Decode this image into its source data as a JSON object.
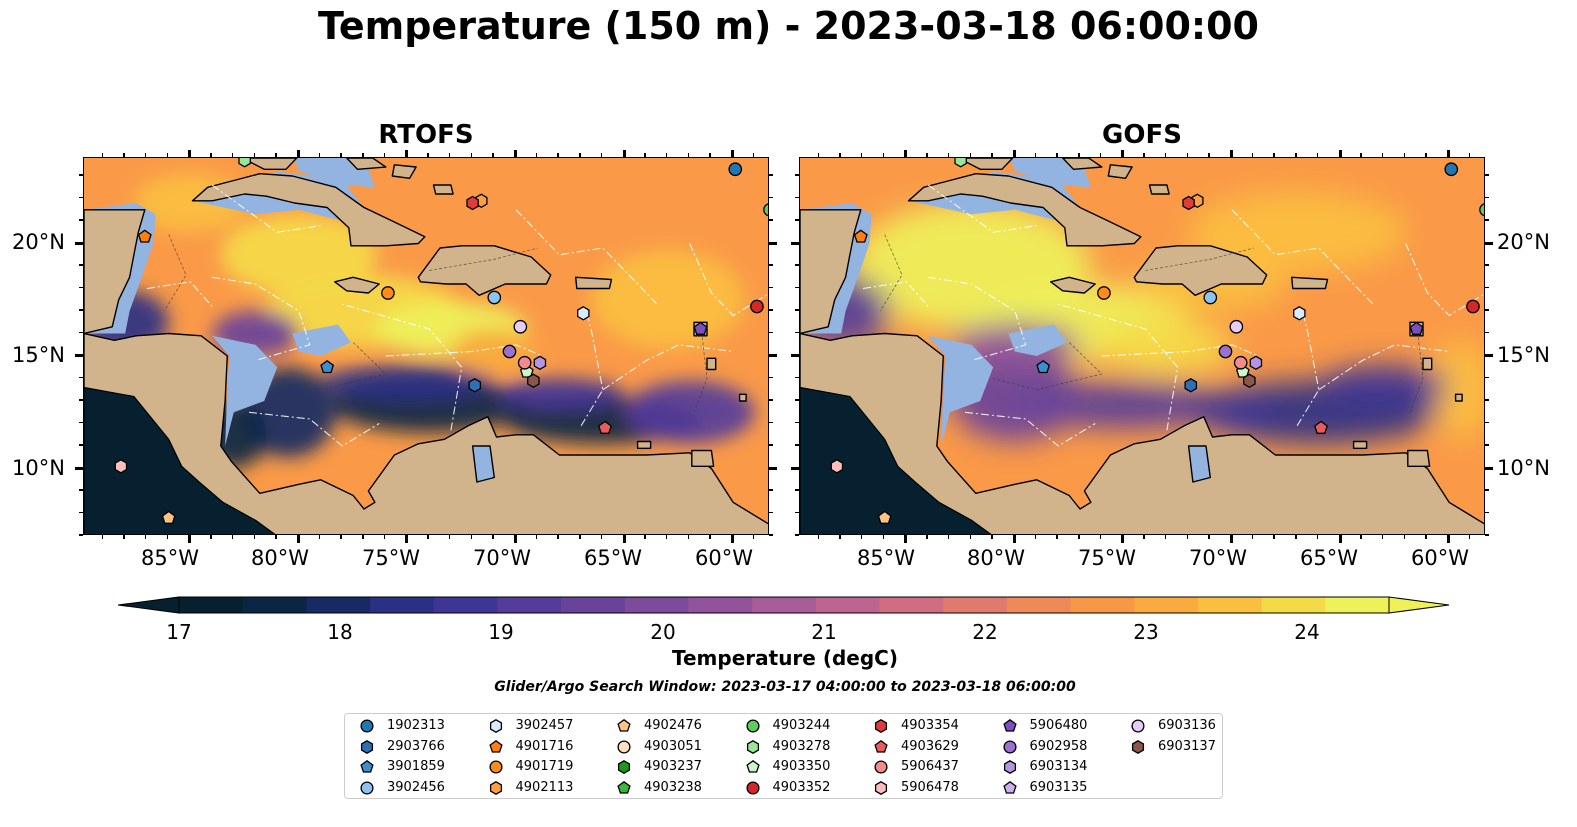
{
  "title": "Temperature (150 m) - 2023-03-18 06:00:00",
  "panels": [
    {
      "title": "RTOFS"
    },
    {
      "title": "GOFS"
    }
  ],
  "axes": {
    "lon_labels": [
      "85°W",
      "80°W",
      "75°W",
      "70°W",
      "65°W",
      "60°W"
    ],
    "lat_labels": [
      "20°N",
      "15°N",
      "10°N"
    ],
    "lon_range": [
      -89.9,
      -58.3
    ],
    "lat_range": [
      7.0,
      23.8
    ]
  },
  "colorbar": {
    "label": "Temperature (degC)",
    "ticks": [
      "17",
      "18",
      "19",
      "20",
      "21",
      "22",
      "23",
      "24"
    ],
    "range": [
      17,
      24.5
    ],
    "extend": "both",
    "colors": [
      "#06202f",
      "#0b2645",
      "#172a63",
      "#2a3185",
      "#3f3596",
      "#553c9a",
      "#69439b",
      "#7d4b9c",
      "#93539c",
      "#a85d98",
      "#bd6590",
      "#d06d83",
      "#e07a6e",
      "#ed8a58",
      "#f69845",
      "#faaa3e",
      "#fbbf40",
      "#f5da47",
      "#eef15a"
    ]
  },
  "search_window": "Glider/Argo Search Window: 2023-03-17 04:00:00 to 2023-03-18 06:00:00",
  "legend": [
    {
      "id": "1902313",
      "marker": "circle",
      "color": "#1f77b4"
    },
    {
      "id": "2903766",
      "marker": "hexagon",
      "color": "#2f6fb3"
    },
    {
      "id": "3901859",
      "marker": "pentagon",
      "color": "#3a8fd0"
    },
    {
      "id": "3902456",
      "marker": "circle",
      "color": "#8ec3ef"
    },
    {
      "id": "3902457",
      "marker": "hexagon",
      "color": "#d7ecff"
    },
    {
      "id": "4901716",
      "marker": "pentagon",
      "color": "#ff7f0e"
    },
    {
      "id": "4901719",
      "marker": "circle",
      "color": "#ff8c1a"
    },
    {
      "id": "4902113",
      "marker": "hexagon",
      "color": "#ffa040"
    },
    {
      "id": "4902476",
      "marker": "pentagon",
      "color": "#ffc285"
    },
    {
      "id": "4903051",
      "marker": "circle",
      "color": "#ffe0c0"
    },
    {
      "id": "4903237",
      "marker": "hexagon",
      "color": "#1a9a1a"
    },
    {
      "id": "4903238",
      "marker": "pentagon",
      "color": "#3cb83c"
    },
    {
      "id": "4903244",
      "marker": "circle",
      "color": "#5fcc5f"
    },
    {
      "id": "4903278",
      "marker": "hexagon",
      "color": "#99e699"
    },
    {
      "id": "4903350",
      "marker": "pentagon",
      "color": "#ccf5cc"
    },
    {
      "id": "4903352",
      "marker": "circle",
      "color": "#d62728"
    },
    {
      "id": "4903354",
      "marker": "hexagon",
      "color": "#df3c3c"
    },
    {
      "id": "4903629",
      "marker": "pentagon",
      "color": "#ea5c5c"
    },
    {
      "id": "5906437",
      "marker": "circle",
      "color": "#f28b8b"
    },
    {
      "id": "5906478",
      "marker": "hexagon",
      "color": "#fbbdbd"
    },
    {
      "id": "5906480",
      "marker": "pentagon",
      "color": "#7b4fbf"
    },
    {
      "id": "6902958",
      "marker": "circle",
      "color": "#9a70d0"
    },
    {
      "id": "6903134",
      "marker": "hexagon",
      "color": "#b695e0"
    },
    {
      "id": "6903135",
      "marker": "pentagon",
      "color": "#cdb0ef"
    },
    {
      "id": "6903136",
      "marker": "circle",
      "color": "#e6ccfa"
    },
    {
      "id": "6903137",
      "marker": "hexagon",
      "color": "#8c564b"
    }
  ],
  "floats_on_map": [
    {
      "id": "1902313",
      "lon": -59.9,
      "lat": 23.3
    },
    {
      "id": "2903766",
      "lon": -71.9,
      "lat": 13.7
    },
    {
      "id": "3901859",
      "lon": -78.7,
      "lat": 14.5
    },
    {
      "id": "3902456",
      "lon": -71.0,
      "lat": 17.6
    },
    {
      "id": "3902457",
      "lon": -66.9,
      "lat": 16.9
    },
    {
      "id": "4901716",
      "lon": -87.1,
      "lat": 20.3
    },
    {
      "id": "4901719",
      "lon": -75.9,
      "lat": 17.8
    },
    {
      "id": "4902113",
      "lon": -71.6,
      "lat": 21.9
    },
    {
      "id": "4902476",
      "lon": -86.0,
      "lat": 7.8
    },
    {
      "id": "4903244",
      "lon": -58.3,
      "lat": 21.5
    },
    {
      "id": "4903278",
      "lon": -82.5,
      "lat": 23.7
    },
    {
      "id": "4903350",
      "lon": -69.5,
      "lat": 14.3
    },
    {
      "id": "4903352",
      "lon": -58.9,
      "lat": 17.2
    },
    {
      "id": "4903354",
      "lon": -72.0,
      "lat": 21.8
    },
    {
      "id": "4903629",
      "lon": -65.9,
      "lat": 11.8
    },
    {
      "id": "5906437",
      "lon": -69.6,
      "lat": 14.7
    },
    {
      "id": "5906478",
      "lon": -88.2,
      "lat": 10.1
    },
    {
      "id": "5906480",
      "lon": -61.5,
      "lat": 16.2
    },
    {
      "id": "6902958",
      "lon": -70.3,
      "lat": 15.2
    },
    {
      "id": "6903134",
      "lon": -68.9,
      "lat": 14.7
    },
    {
      "id": "6903136",
      "lon": -69.8,
      "lat": 16.3
    },
    {
      "id": "6903137",
      "lon": -69.2,
      "lat": 13.9
    }
  ]
}
